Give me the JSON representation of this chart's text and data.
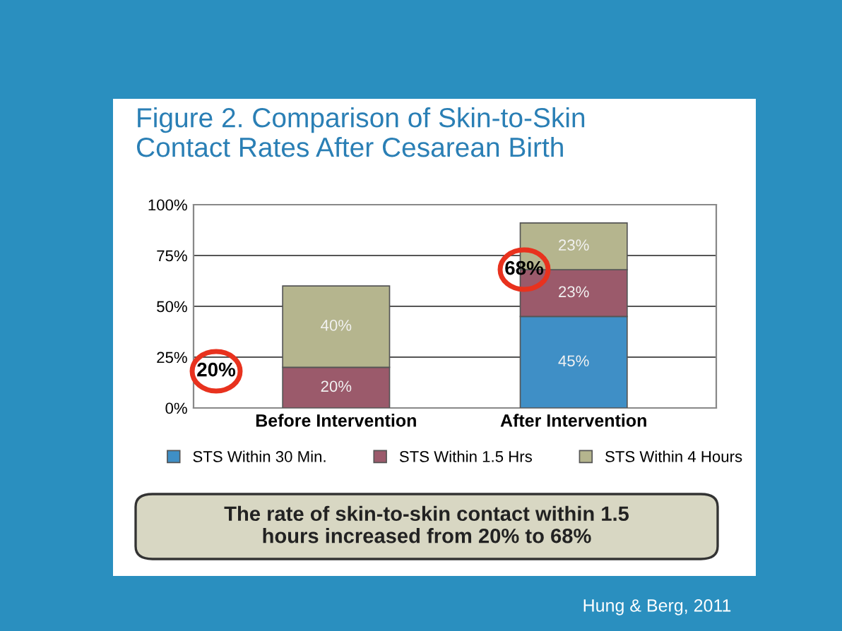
{
  "chart_data": {
    "type": "bar",
    "stacked": true,
    "title": "Figure 2. Comparison of Skin-to-Skin Contact Rates After Cesarean Birth",
    "categories": [
      "Before Intervention",
      "After Intervention"
    ],
    "series": [
      {
        "name": "STS Within 30 Min.",
        "color": "#3f8fc6",
        "values": [
          0,
          45
        ],
        "value_labels": [
          null,
          "45%"
        ]
      },
      {
        "name": "STS Within 1.5 Hrs",
        "color": "#9b5a6b",
        "values": [
          20,
          23
        ],
        "value_labels": [
          "20%",
          "23%"
        ]
      },
      {
        "name": "STS Within 4 Hours",
        "color": "#b5b58e",
        "values": [
          40,
          23
        ],
        "value_labels": [
          "40%",
          "23%"
        ]
      }
    ],
    "ylim": [
      0,
      100
    ],
    "yticks": [
      {
        "value": 0,
        "label": "0%"
      },
      {
        "value": 25,
        "label": "25%"
      },
      {
        "value": 50,
        "label": "50%"
      },
      {
        "value": 75,
        "label": "75%"
      },
      {
        "value": 100,
        "label": "100%"
      }
    ],
    "grid": "y",
    "legend": "bottom",
    "annotations": [
      "20%",
      "68%",
      "The rate of skin-to-skin contact within 1.5 hours increased from 20% to 68%",
      "Hung & Berg, 2011"
    ]
  }
}
